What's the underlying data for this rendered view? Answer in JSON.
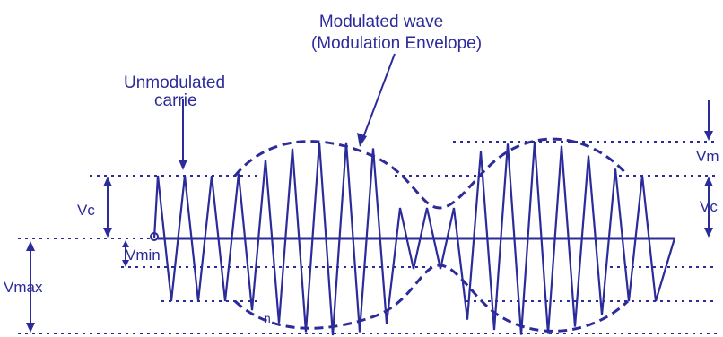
{
  "colors": {
    "wave": "#2b2b9a",
    "dotted_guides": "#2b2b9a",
    "text": "#2b2b9a",
    "background": "#ffffff"
  },
  "labels": {
    "modulated_wave_line1": "Modulated wave",
    "modulated_wave_line2": "(Modulation Envelope)",
    "unmodulated_line1": "Unmodulated",
    "unmodulated_line2": "carrie",
    "vc_left": "Vc",
    "vmin": "Vmin",
    "vmax": "Vmax",
    "vm_right": "Vm",
    "vc_right": "Vc",
    "bottom_fragment": "n"
  }
}
